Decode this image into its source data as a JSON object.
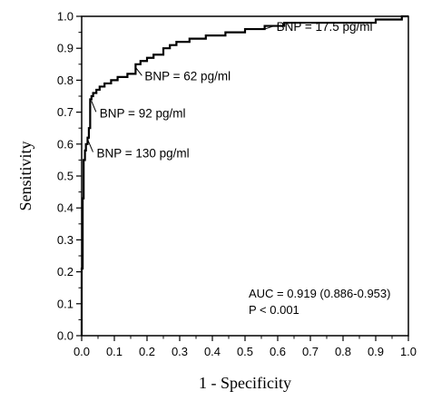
{
  "chart_data": {
    "type": "line",
    "xlabel": "1 - Specificity",
    "ylabel": "Sensitivity",
    "xlim": [
      0,
      1
    ],
    "ylim": [
      0,
      1
    ],
    "xticks": [
      "0.0",
      "0.1",
      "0.2",
      "0.3",
      "0.4",
      "0.5",
      "0.6",
      "0.7",
      "0.8",
      "0.9",
      "1.0"
    ],
    "yticks": [
      "0.0",
      "0.1",
      "0.2",
      "0.3",
      "0.4",
      "0.5",
      "0.6",
      "0.7",
      "0.8",
      "0.9",
      "1.0"
    ],
    "grid": false,
    "series": [
      {
        "x": [
          0,
          0,
          0.003,
          0.003,
          0.006,
          0.006,
          0.01,
          0.01,
          0.013,
          0.013,
          0.018,
          0.018,
          0.022,
          0.022,
          0.026,
          0.026,
          0.03,
          0.03,
          0.035,
          0.035,
          0.045,
          0.045,
          0.055,
          0.055,
          0.07,
          0.07,
          0.09,
          0.09,
          0.11,
          0.11,
          0.14,
          0.14,
          0.165,
          0.165,
          0.18,
          0.18,
          0.2,
          0.2,
          0.22,
          0.22,
          0.25,
          0.25,
          0.27,
          0.27,
          0.29,
          0.29,
          0.33,
          0.33,
          0.38,
          0.38,
          0.44,
          0.44,
          0.5,
          0.5,
          0.56,
          0.56,
          0.62,
          0.62,
          0.9,
          0.9,
          0.98,
          0.98,
          1.0
        ],
        "y": [
          0,
          0.21,
          0.21,
          0.43,
          0.43,
          0.55,
          0.55,
          0.58,
          0.58,
          0.6,
          0.6,
          0.62,
          0.62,
          0.65,
          0.65,
          0.74,
          0.74,
          0.75,
          0.75,
          0.76,
          0.76,
          0.77,
          0.77,
          0.78,
          0.78,
          0.79,
          0.79,
          0.8,
          0.8,
          0.81,
          0.81,
          0.82,
          0.82,
          0.85,
          0.85,
          0.86,
          0.86,
          0.87,
          0.87,
          0.88,
          0.88,
          0.9,
          0.9,
          0.91,
          0.91,
          0.92,
          0.92,
          0.93,
          0.93,
          0.94,
          0.94,
          0.95,
          0.95,
          0.96,
          0.96,
          0.97,
          0.97,
          0.98,
          0.98,
          0.99,
          0.99,
          1.0,
          1.0
        ]
      }
    ],
    "annotations": [
      {
        "text": "BNP = 17.5 pg/ml",
        "x": 0.56,
        "y": 0.96
      },
      {
        "text": "BNP = 62 pg/ml",
        "x": 0.165,
        "y": 0.84
      },
      {
        "text": "BNP = 92 pg/ml",
        "x": 0.03,
        "y": 0.735
      },
      {
        "text": "BNP = 130 pg/ml",
        "x": 0.018,
        "y": 0.615
      }
    ],
    "stats": [
      "AUC = 0.919 (0.886-0.953)",
      "P < 0.001"
    ]
  }
}
